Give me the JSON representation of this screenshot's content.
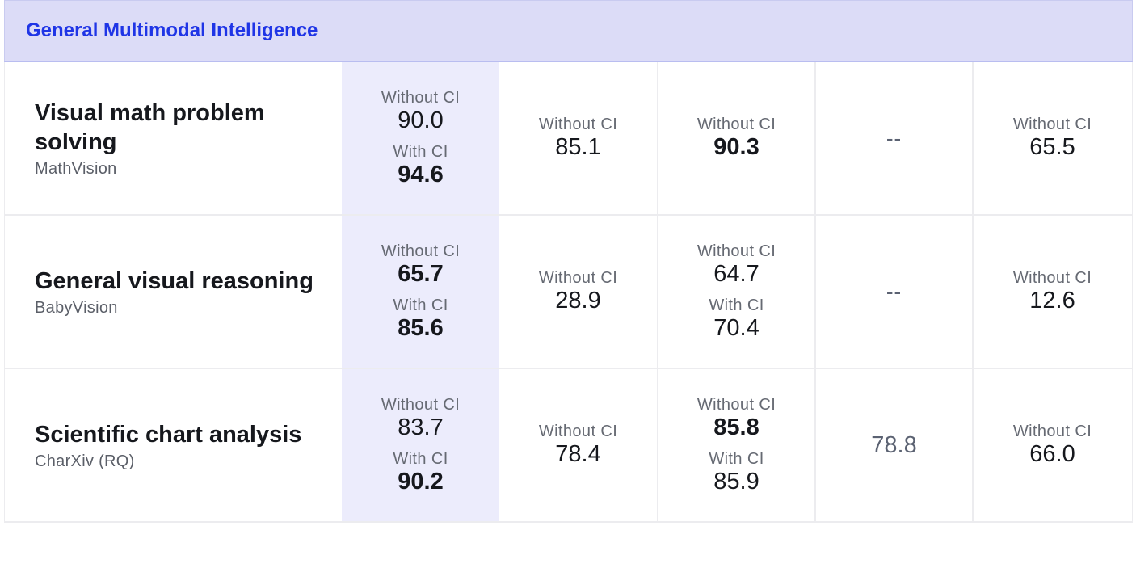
{
  "section": {
    "title": "General Multimodal Intelligence"
  },
  "rows": [
    {
      "task": "Visual math problem solving",
      "benchmark": "MathVision",
      "col1": {
        "entries": [
          {
            "label": "Without CI",
            "value": "90.0",
            "bold": false
          },
          {
            "label": "With CI",
            "value": "94.6",
            "bold": true
          }
        ]
      },
      "col2": {
        "entries": [
          {
            "label": "Without CI",
            "value": "85.1",
            "bold": false
          }
        ]
      },
      "col3": {
        "entries": [
          {
            "label": "Without CI",
            "value": "90.3",
            "bold": true
          }
        ]
      },
      "col4": {
        "plain": "--"
      },
      "col5": {
        "entries": [
          {
            "label": "Without CI",
            "value": "65.5",
            "bold": false
          }
        ]
      }
    },
    {
      "task": "General visual reasoning",
      "benchmark": "BabyVision",
      "col1": {
        "entries": [
          {
            "label": "Without CI",
            "value": "65.7",
            "bold": true
          },
          {
            "label": "With CI",
            "value": "85.6",
            "bold": true
          }
        ]
      },
      "col2": {
        "entries": [
          {
            "label": "Without CI",
            "value": "28.9",
            "bold": false
          }
        ]
      },
      "col3": {
        "entries": [
          {
            "label": "Without CI",
            "value": "64.7",
            "bold": false
          },
          {
            "label": "With CI",
            "value": "70.4",
            "bold": false
          }
        ]
      },
      "col4": {
        "plain": "--"
      },
      "col5": {
        "entries": [
          {
            "label": "Without CI",
            "value": "12.6",
            "bold": false
          }
        ]
      }
    },
    {
      "task": "Scientific chart analysis",
      "benchmark": "CharXiv (RQ)",
      "col1": {
        "entries": [
          {
            "label": "Without CI",
            "value": "83.7",
            "bold": false
          },
          {
            "label": "With CI",
            "value": "90.2",
            "bold": true
          }
        ]
      },
      "col2": {
        "entries": [
          {
            "label": "Without CI",
            "value": "78.4",
            "bold": false
          }
        ]
      },
      "col3": {
        "entries": [
          {
            "label": "Without CI",
            "value": "85.8",
            "bold": true
          },
          {
            "label": "With CI",
            "value": "85.9",
            "bold": false
          }
        ]
      },
      "col4": {
        "plain": "78.8"
      },
      "col5": {
        "entries": [
          {
            "label": "Without CI",
            "value": "66.0",
            "bold": false
          }
        ]
      }
    }
  ]
}
